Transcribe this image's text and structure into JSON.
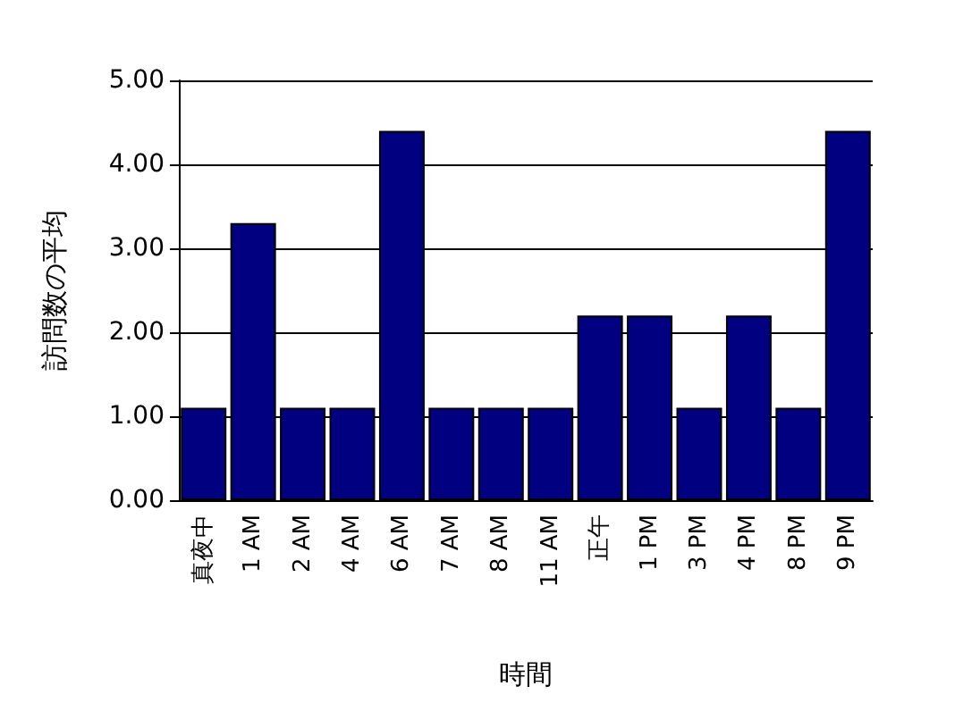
{
  "chart_data": {
    "type": "bar",
    "xlabel": "時間",
    "ylabel": "訪問数の平均",
    "categories": [
      "真夜中",
      "1 AM",
      "2 AM",
      "4 AM",
      "6 AM",
      "7 AM",
      "8 AM",
      "11 AM",
      "正午",
      "1 PM",
      "3 PM",
      "4 PM",
      "8 PM",
      "9 PM"
    ],
    "values": [
      1.1,
      3.3,
      1.1,
      1.1,
      4.4,
      1.1,
      1.1,
      1.1,
      2.2,
      2.2,
      1.1,
      2.2,
      1.1,
      4.4
    ],
    "color": "#000080",
    "ylim": [
      0,
      5
    ],
    "yticks": [
      {
        "value": 0,
        "label": "0.00"
      },
      {
        "value": 1,
        "label": "1.00"
      },
      {
        "value": 2,
        "label": "2.00"
      },
      {
        "value": 3,
        "label": "3.00"
      },
      {
        "value": 4,
        "label": "4.00"
      },
      {
        "value": 5,
        "label": "5.00"
      }
    ],
    "grid": "y"
  }
}
